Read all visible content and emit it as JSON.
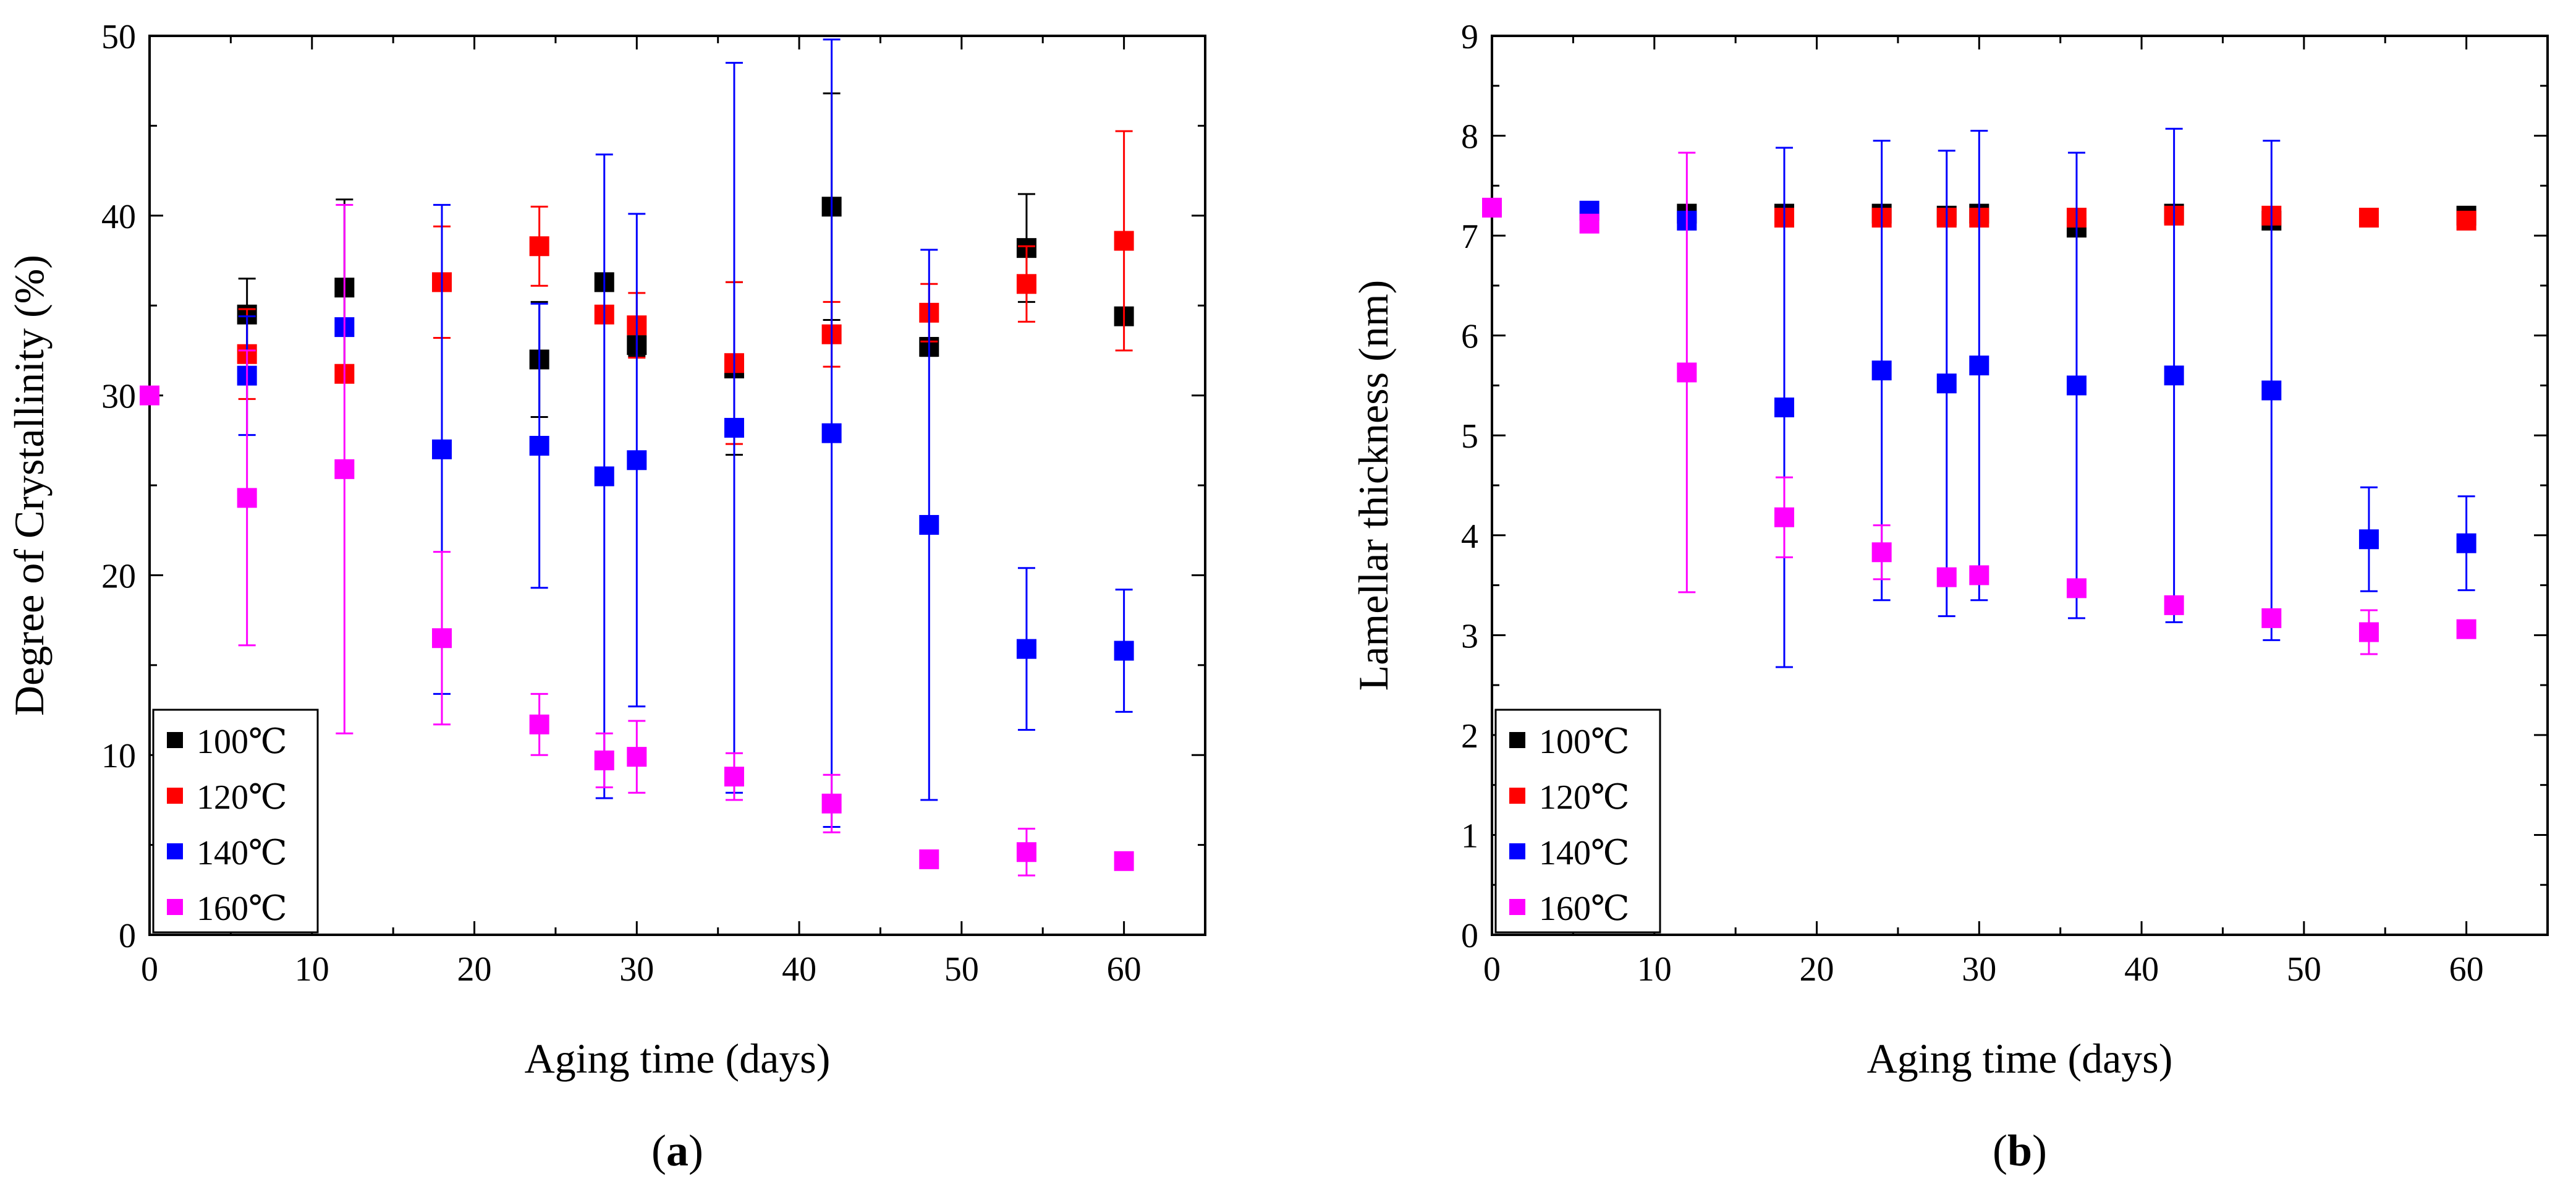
{
  "chart_data": [
    {
      "type": "scatter",
      "panel_label": "a",
      "xlabel": "Aging time (days)",
      "ylabel": "Degree of Crystallinity (%)",
      "xlim": [
        0,
        65
      ],
      "ylim": [
        0,
        50
      ],
      "xticks": [
        0,
        10,
        20,
        30,
        40,
        50,
        60
      ],
      "yticks": [
        0,
        10,
        20,
        30,
        40,
        50
      ],
      "legend_position": "bottom-left",
      "series": [
        {
          "name": "100℃",
          "color": "#000000",
          "x": [
            6,
            12,
            24,
            28,
            30,
            36,
            42,
            48,
            54,
            60
          ],
          "y": [
            34.5,
            36.0,
            32.0,
            36.3,
            32.8,
            31.5,
            40.5,
            32.7,
            38.2,
            34.4
          ],
          "err": [
            2.0,
            4.9,
            3.2,
            0,
            0.6,
            4.8,
            6.3,
            0.5,
            3.0,
            0
          ]
        },
        {
          "name": "120℃",
          "color": "#ff0000",
          "x": [
            6,
            12,
            18,
            24,
            28,
            30,
            36,
            42,
            48,
            54,
            60
          ],
          "y": [
            32.3,
            31.2,
            36.3,
            38.3,
            34.5,
            33.9,
            31.8,
            33.4,
            34.6,
            36.2,
            38.6
          ],
          "err": [
            2.5,
            0,
            3.1,
            2.2,
            0,
            1.8,
            4.5,
            1.8,
            1.6,
            2.1,
            6.1
          ]
        },
        {
          "name": "140℃",
          "color": "#0000ff",
          "x": [
            6,
            12,
            18,
            24,
            28,
            30,
            36,
            42,
            48,
            54,
            60
          ],
          "y": [
            31.1,
            33.8,
            27.0,
            27.2,
            25.5,
            26.4,
            28.2,
            27.9,
            22.8,
            15.9,
            15.8
          ],
          "err": [
            3.3,
            0,
            13.6,
            7.9,
            17.9,
            13.7,
            20.3,
            21.9,
            15.3,
            4.5,
            3.4
          ]
        },
        {
          "name": "160℃",
          "color": "#ff00ff",
          "x": [
            0,
            6,
            12,
            18,
            24,
            28,
            30,
            36,
            42,
            48,
            54,
            60
          ],
          "y": [
            30.0,
            24.3,
            25.9,
            16.5,
            11.7,
            9.7,
            9.9,
            8.8,
            7.3,
            4.2,
            4.6,
            4.1
          ],
          "err": [
            0,
            8.2,
            14.7,
            4.8,
            1.7,
            1.5,
            2.0,
            1.3,
            1.6,
            0,
            1.3,
            0
          ]
        }
      ]
    },
    {
      "type": "scatter",
      "panel_label": "b",
      "xlabel": "Aging time (days)",
      "ylabel": "Lamellar thickness (nm)",
      "xlim": [
        0,
        65
      ],
      "ylim": [
        0,
        9
      ],
      "xticks": [
        0,
        10,
        20,
        30,
        40,
        50,
        60
      ],
      "yticks": [
        0,
        1,
        2,
        3,
        4,
        5,
        6,
        7,
        8,
        9
      ],
      "legend_position": "bottom-left",
      "series": [
        {
          "name": "100℃",
          "color": "#000000",
          "x": [
            12,
            18,
            24,
            28,
            30,
            36,
            42,
            48,
            60
          ],
          "y": [
            7.22,
            7.22,
            7.22,
            7.2,
            7.22,
            7.08,
            7.22,
            7.15,
            7.2
          ],
          "err": [
            0,
            0,
            0,
            0,
            0,
            0,
            0,
            0,
            0
          ]
        },
        {
          "name": "120℃",
          "color": "#ff0000",
          "x": [
            18,
            24,
            28,
            30,
            36,
            42,
            48,
            54,
            60
          ],
          "y": [
            7.18,
            7.18,
            7.18,
            7.18,
            7.18,
            7.2,
            7.2,
            7.18,
            7.15
          ],
          "err": [
            0,
            0,
            0,
            0,
            0,
            0,
            0,
            0,
            0
          ]
        },
        {
          "name": "140℃",
          "color": "#0000ff",
          "x": [
            6,
            12,
            18,
            24,
            28,
            30,
            36,
            42,
            48,
            54,
            60
          ],
          "y": [
            7.25,
            7.15,
            5.28,
            5.65,
            5.52,
            5.7,
            5.5,
            5.6,
            5.45,
            3.96,
            3.92
          ],
          "err": [
            0,
            0,
            2.6,
            2.3,
            2.33,
            2.35,
            2.33,
            2.47,
            2.5,
            0.52,
            0.47
          ]
        },
        {
          "name": "160℃",
          "color": "#ff00ff",
          "x": [
            0,
            6,
            12,
            18,
            24,
            28,
            30,
            36,
            42,
            48,
            54,
            60
          ],
          "y": [
            7.28,
            7.12,
            5.63,
            4.18,
            3.83,
            3.58,
            3.6,
            3.47,
            3.3,
            3.17,
            3.03,
            3.06
          ],
          "err": [
            0,
            0,
            2.2,
            0.4,
            0.27,
            0,
            0.05,
            0,
            0,
            0,
            0.22,
            0
          ]
        }
      ]
    }
  ]
}
